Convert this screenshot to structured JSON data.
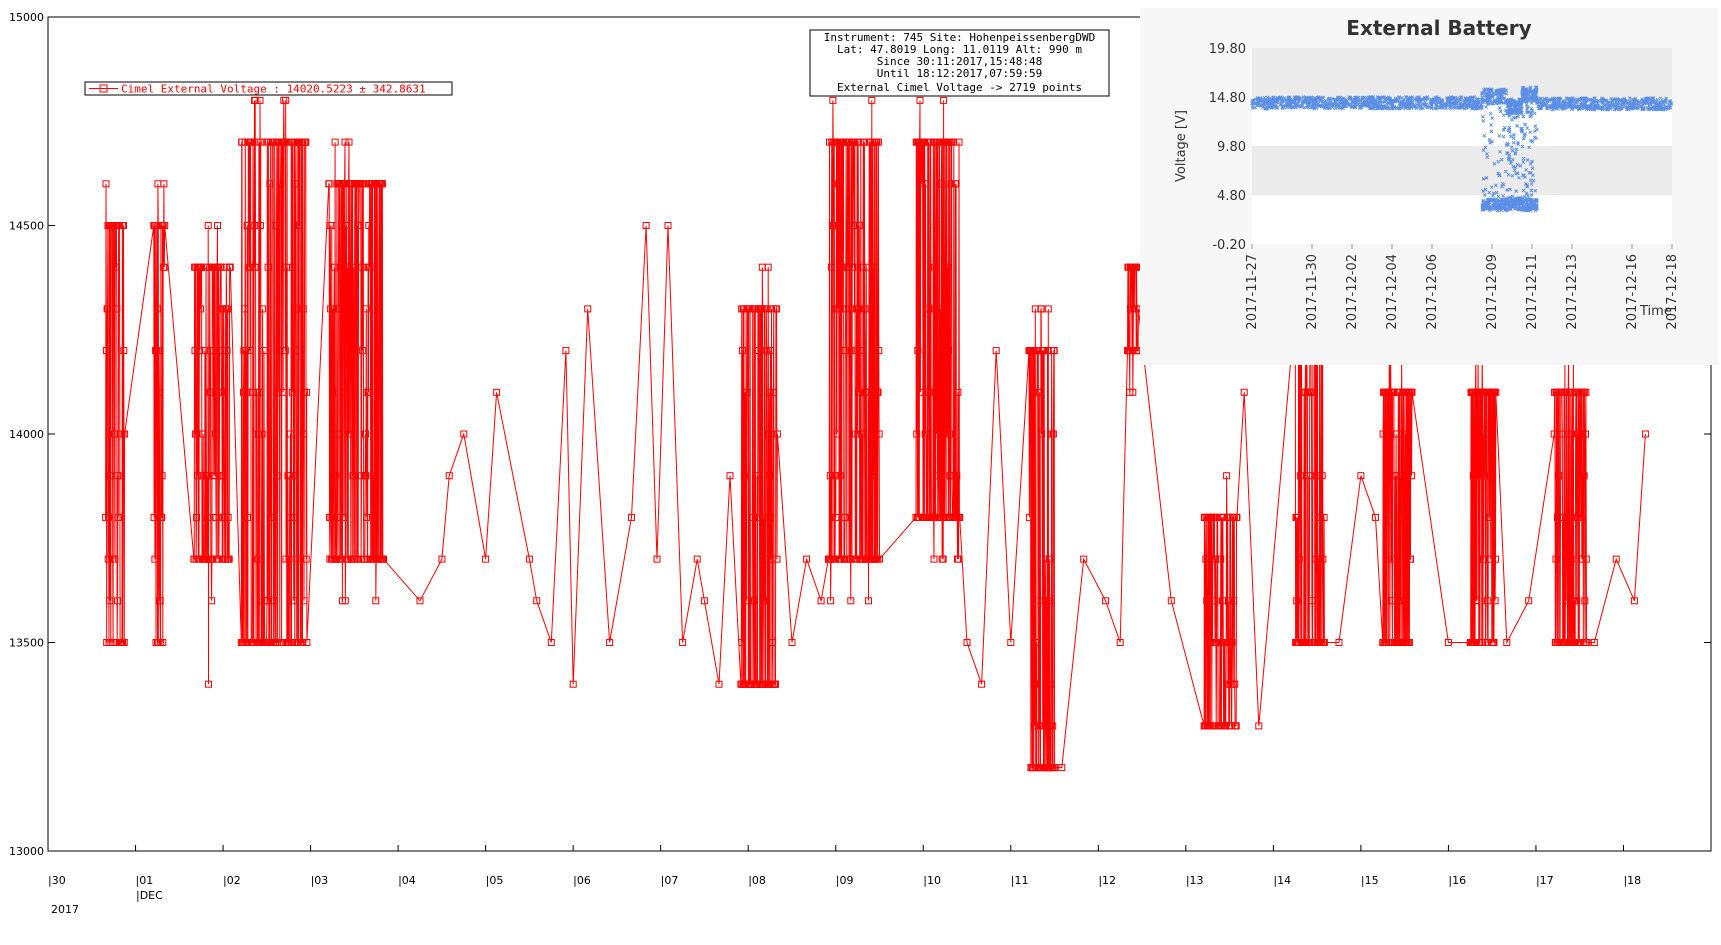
{
  "chart_data": [
    {
      "type": "line",
      "title": "",
      "xlabel": "",
      "ylabel": "",
      "ylim": [
        13000,
        15000
      ],
      "yticks": [
        13000,
        13500,
        14000,
        14500,
        15000
      ],
      "xlim": [
        "2017-11-30",
        "2017-12-19"
      ],
      "xticks": [
        {
          "date": "2017-11-30",
          "label": "|30"
        },
        {
          "date": "2017-12-01",
          "label": "|01"
        },
        {
          "date": "2017-12-02",
          "label": "|02"
        },
        {
          "date": "2017-12-03",
          "label": "|03"
        },
        {
          "date": "2017-12-04",
          "label": "|04"
        },
        {
          "date": "2017-12-05",
          "label": "|05"
        },
        {
          "date": "2017-12-06",
          "label": "|06"
        },
        {
          "date": "2017-12-07",
          "label": "|07"
        },
        {
          "date": "2017-12-08",
          "label": "|08"
        },
        {
          "date": "2017-12-09",
          "label": "|09"
        },
        {
          "date": "2017-12-10",
          "label": "|10"
        },
        {
          "date": "2017-12-11",
          "label": "|11"
        },
        {
          "date": "2017-12-12",
          "label": "|12"
        },
        {
          "date": "2017-12-13",
          "label": "|13"
        },
        {
          "date": "2017-12-14",
          "label": "|14"
        },
        {
          "date": "2017-12-15",
          "label": "|15"
        },
        {
          "date": "2017-12-16",
          "label": "|16"
        },
        {
          "date": "2017-12-17",
          "label": "|17"
        },
        {
          "date": "2017-12-18",
          "label": "|18"
        }
      ],
      "month_label": "|DEC",
      "year_label": "2017",
      "legend": {
        "text": "Cimel External Voltage : 14020.5223 ± 342.8631",
        "position": "top-left"
      },
      "info_box": [
        "Instrument: 745 Site: HohenpeissenbergDWD",
        "Lat: 47.8019 Long: 11.0119 Alt: 990 m",
        "Since 30:11:2017,15:48:48",
        "Until 18:12:2017,07:59:59",
        "External Cimel Voltage -> 2719 points"
      ],
      "series": [
        {
          "color": "#ff0000",
          "bursts": [
            {
              "start": "2017-11-30T15:48",
              "end": "2017-11-30T21:00",
              "lo": 13500,
              "hi": 14600
            },
            {
              "start": "2017-12-01T05:00",
              "end": "2017-12-01T08:00",
              "lo": 13500,
              "hi": 14600
            },
            {
              "start": "2017-12-01T16:00",
              "end": "2017-12-02T02:00",
              "lo": 13600,
              "hi": 14500
            },
            {
              "start": "2017-12-02T05:00",
              "end": "2017-12-02T23:00",
              "lo": 13500,
              "hi": 14800
            },
            {
              "start": "2017-12-03T05:00",
              "end": "2017-12-03T20:00",
              "lo": 13600,
              "hi": 14700
            },
            {
              "start": "2017-12-07T22:00",
              "end": "2017-12-08T08:00",
              "lo": 13400,
              "hi": 14400
            },
            {
              "start": "2017-12-08T22:00",
              "end": "2017-12-09T12:00",
              "lo": 13600,
              "hi": 14800
            },
            {
              "start": "2017-12-09T22:00",
              "end": "2017-12-10T10:00",
              "lo": 13700,
              "hi": 14800
            },
            {
              "start": "2017-12-11T05:00",
              "end": "2017-12-11T12:00",
              "lo": 13200,
              "hi": 14300
            },
            {
              "start": "2017-12-12T08:00",
              "end": "2017-12-12T11:00",
              "lo": 14100,
              "hi": 14500
            },
            {
              "start": "2017-12-13T05:00",
              "end": "2017-12-13T14:00",
              "lo": 13300,
              "hi": 13900
            },
            {
              "start": "2017-12-14T06:00",
              "end": "2017-12-14T14:00",
              "lo": 13500,
              "hi": 14400
            },
            {
              "start": "2017-12-15T06:00",
              "end": "2017-12-15T14:00",
              "lo": 13500,
              "hi": 14200
            },
            {
              "start": "2017-12-16T06:00",
              "end": "2017-12-16T13:00",
              "lo": 13500,
              "hi": 14200
            },
            {
              "start": "2017-12-17T05:00",
              "end": "2017-12-17T14:00",
              "lo": 13500,
              "hi": 14200
            }
          ],
          "points": [
            [
              "2017-12-01T20:00",
              13400
            ],
            [
              "2017-12-02T00:00",
              13800
            ],
            [
              "2017-12-04T06:00",
              13600
            ],
            [
              "2017-12-04T12:00",
              13700
            ],
            [
              "2017-12-04T14:00",
              13900
            ],
            [
              "2017-12-04T18:00",
              14000
            ],
            [
              "2017-12-05T00:00",
              13700
            ],
            [
              "2017-12-05T03:00",
              14100
            ],
            [
              "2017-12-05T12:00",
              13700
            ],
            [
              "2017-12-05T14:00",
              13600
            ],
            [
              "2017-12-05T18:00",
              13500
            ],
            [
              "2017-12-05T22:00",
              14200
            ],
            [
              "2017-12-06T00:00",
              13400
            ],
            [
              "2017-12-06T04:00",
              14300
            ],
            [
              "2017-12-06T10:00",
              13500
            ],
            [
              "2017-12-06T16:00",
              13800
            ],
            [
              "2017-12-06T20:00",
              14500
            ],
            [
              "2017-12-06T23:00",
              13700
            ],
            [
              "2017-12-07T02:00",
              14500
            ],
            [
              "2017-12-07T06:00",
              13500
            ],
            [
              "2017-12-07T10:00",
              13700
            ],
            [
              "2017-12-07T12:00",
              13600
            ],
            [
              "2017-12-07T16:00",
              13400
            ],
            [
              "2017-12-07T19:00",
              13900
            ],
            [
              "2017-12-08T12:00",
              13500
            ],
            [
              "2017-12-08T16:00",
              13700
            ],
            [
              "2017-12-08T20:00",
              13600
            ],
            [
              "2017-12-10T12:00",
              13500
            ],
            [
              "2017-12-10T16:00",
              13400
            ],
            [
              "2017-12-10T20:00",
              14200
            ],
            [
              "2017-12-11T00:00",
              13500
            ],
            [
              "2017-12-11T14:00",
              13200
            ],
            [
              "2017-12-11T20:00",
              13700
            ],
            [
              "2017-12-12T02:00",
              13600
            ],
            [
              "2017-12-12T06:00",
              13500
            ],
            [
              "2017-12-12T20:00",
              13600
            ],
            [
              "2017-12-13T16:00",
              14100
            ],
            [
              "2017-12-13T20:00",
              13300
            ],
            [
              "2017-12-14T18:00",
              13500
            ],
            [
              "2017-12-15T00:00",
              13900
            ],
            [
              "2017-12-15T04:00",
              13800
            ],
            [
              "2017-12-16T00:00",
              13500
            ],
            [
              "2017-12-16T16:00",
              13500
            ],
            [
              "2017-12-16T22:00",
              13600
            ],
            [
              "2017-12-17T16:00",
              13500
            ],
            [
              "2017-12-17T22:00",
              13700
            ],
            [
              "2017-12-18T03:00",
              13600
            ],
            [
              "2017-12-18T06:00",
              14000
            ]
          ]
        }
      ]
    },
    {
      "type": "scatter",
      "title": "External Battery",
      "xlabel": "Time",
      "ylabel": "Voltage [V]",
      "ylim": [
        -0.2,
        19.8
      ],
      "yticks": [
        "-0.20",
        "4.80",
        "9.80",
        "14.80",
        "19.80"
      ],
      "xticks": [
        "2017-11-27",
        "2017-11-30",
        "2017-12-02",
        "2017-12-04",
        "2017-12-06",
        "2017-12-09",
        "2017-12-11",
        "2017-12-13",
        "2017-12-16",
        "2017-12-18"
      ],
      "color": "#5b8ee6",
      "segments": [
        {
          "start": "2017-11-27",
          "end": "2017-12-08T12:00",
          "lo": 13.6,
          "hi": 14.8
        },
        {
          "start": "2017-12-08T12:00",
          "end": "2017-12-09T18:00",
          "lo": 3.2,
          "hi": 15.6
        },
        {
          "start": "2017-12-09T18:00",
          "end": "2017-12-10T12:00",
          "lo": 3.3,
          "hi": 14.6
        },
        {
          "start": "2017-12-10T12:00",
          "end": "2017-12-11T06:00",
          "lo": 3.2,
          "hi": 15.8
        },
        {
          "start": "2017-12-11T06:00",
          "end": "2017-12-18T00:00",
          "lo": 13.5,
          "hi": 14.7
        }
      ]
    }
  ]
}
